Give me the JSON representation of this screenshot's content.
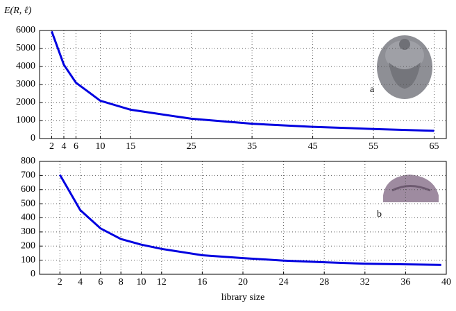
{
  "chart_data": [
    {
      "type": "line",
      "ylabel": "E(R, ℓ)",
      "annotation": "a",
      "x": [
        2,
        4,
        6,
        10,
        15,
        25,
        35,
        45,
        55,
        65
      ],
      "series": [
        {
          "color": "#0000e0",
          "values": [
            5950,
            4100,
            3100,
            2100,
            1600,
            1100,
            820,
            650,
            530,
            430
          ]
        }
      ],
      "xlim": [
        0,
        67
      ],
      "xticks": [
        2,
        4,
        6,
        10,
        15,
        25,
        35,
        45,
        55,
        65
      ],
      "ylim": [
        0,
        6000
      ],
      "yticks": [
        0,
        1000,
        2000,
        3000,
        4000,
        5000,
        6000
      ],
      "grid": true
    },
    {
      "type": "line",
      "xlabel": "library size",
      "annotation": "b",
      "x": [
        2,
        4,
        6,
        8,
        10,
        12,
        16,
        20,
        24,
        28,
        32,
        39.5
      ],
      "series": [
        {
          "color": "#0000e0",
          "values": [
            705,
            455,
            325,
            250,
            210,
            180,
            135,
            115,
            97,
            85,
            75,
            67
          ]
        }
      ],
      "xlim": [
        0,
        40
      ],
      "xticks": [
        2,
        4,
        6,
        8,
        10,
        12,
        16,
        20,
        24,
        28,
        32,
        36,
        40
      ],
      "ylim": [
        0,
        800
      ],
      "yticks": [
        0,
        100,
        200,
        300,
        400,
        500,
        600,
        700,
        800
      ],
      "grid": true
    }
  ]
}
